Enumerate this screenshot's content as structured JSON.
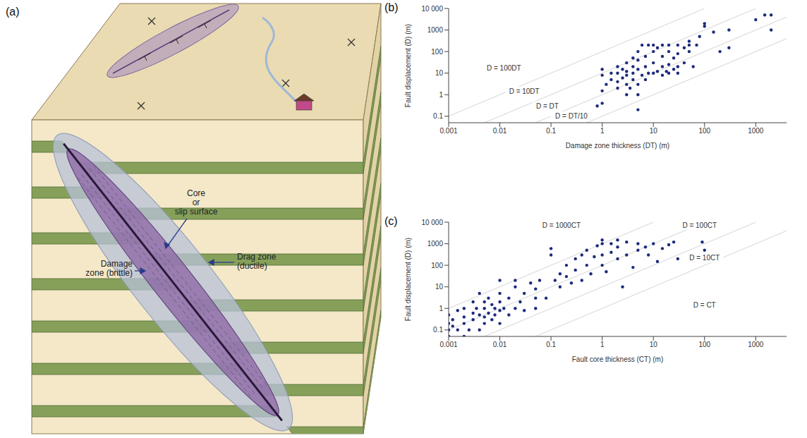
{
  "diagram": {
    "panel": "(a)",
    "labels": [
      [
        "Core",
        "or",
        "slip surface"
      ],
      [
        "Damage",
        "zone (brittle)"
      ],
      [
        "Drag zone",
        "(ductile)"
      ]
    ]
  },
  "chart_data": [
    {
      "type": "scatter",
      "panel": "(b)",
      "x_label": "Damage zone thickness (DT) (m)",
      "y_label": "Fault displacement (D) (m)",
      "log": true,
      "color": "#1c2a7c",
      "xlim": [
        0.001,
        4000
      ],
      "ylim": [
        0.05,
        10000
      ],
      "xticks": [
        0.001,
        0.01,
        0.1,
        1,
        10,
        100,
        1000
      ],
      "yticks": [
        0.1,
        1,
        10,
        100,
        1000,
        {
          "value": 10000,
          "label": "10 000"
        }
      ],
      "reference_lines": [
        {
          "label": "D = 100DT",
          "ratio": 100
        },
        {
          "label": "D = 10DT",
          "ratio": 10
        },
        {
          "label": "D = DT",
          "ratio": 1
        },
        {
          "label": "D = DT/10",
          "ratio": 0.1
        }
      ],
      "x": [
        0.8,
        1,
        1,
        1,
        1,
        1.2,
        1.5,
        1.5,
        2,
        2,
        2,
        2,
        2.5,
        2.5,
        3,
        3,
        3,
        3,
        3,
        3.5,
        4,
        4,
        4,
        4,
        5,
        5,
        5,
        5,
        5,
        5,
        6,
        6,
        7,
        7,
        7,
        8,
        8,
        10,
        10,
        10,
        10,
        12,
        12,
        15,
        15,
        15,
        15,
        18,
        20,
        20,
        20,
        20,
        25,
        25,
        30,
        30,
        30,
        30,
        40,
        40,
        50,
        50,
        50,
        60,
        70,
        80,
        100,
        100,
        150,
        200,
        300,
        300,
        1000,
        1500,
        2000,
        2000
      ],
      "values": [
        0.3,
        15,
        8,
        1.5,
        0.4,
        3,
        5,
        10,
        2,
        4,
        10,
        20,
        6,
        15,
        1,
        3,
        8,
        12,
        30,
        2,
        5,
        10,
        20,
        50,
        0.2,
        1,
        3,
        15,
        40,
        100,
        8,
        200,
        5,
        20,
        60,
        10,
        200,
        10,
        30,
        100,
        200,
        12,
        150,
        8,
        20,
        60,
        200,
        12,
        10,
        25,
        100,
        200,
        15,
        50,
        10,
        20,
        80,
        200,
        30,
        150,
        100,
        200,
        300,
        20,
        200,
        500,
        1500,
        2000,
        800,
        100,
        150,
        1000,
        3000,
        5000,
        1000,
        5000
      ]
    },
    {
      "type": "scatter",
      "panel": "(c)",
      "x_label": "Fault core thickness (CT) (m)",
      "y_label": "Fault displacement (D) (m)",
      "log": true,
      "color": "#1c2a7c",
      "xlim": [
        0.001,
        4000
      ],
      "ylim": [
        0.05,
        10000
      ],
      "xticks": [
        0.001,
        0.01,
        0.1,
        1,
        10,
        100,
        1000
      ],
      "yticks": [
        0.1,
        1,
        10,
        100,
        1000,
        {
          "value": 10000,
          "label": "10 000"
        }
      ],
      "reference_lines": [
        {
          "label": "D = 1000CT",
          "ratio": 1000
        },
        {
          "label": "D = 100CT",
          "ratio": 100
        },
        {
          "label": "D = 10CT",
          "ratio": 10
        },
        {
          "label": "D = CT",
          "ratio": 1
        }
      ],
      "x": [
        0.001,
        0.001,
        0.001,
        0.001,
        0.0012,
        0.0012,
        0.0015,
        0.0015,
        0.002,
        0.002,
        0.002,
        0.002,
        0.0025,
        0.003,
        0.003,
        0.003,
        0.0035,
        0.004,
        0.004,
        0.004,
        0.005,
        0.005,
        0.005,
        0.005,
        0.006,
        0.006,
        0.007,
        0.007,
        0.008,
        0.008,
        0.01,
        0.01,
        0.01,
        0.01,
        0.01,
        0.012,
        0.015,
        0.015,
        0.02,
        0.02,
        0.02,
        0.025,
        0.03,
        0.03,
        0.04,
        0.05,
        0.05,
        0.05,
        0.06,
        0.08,
        0.1,
        0.1,
        0.12,
        0.15,
        0.15,
        0.2,
        0.2,
        0.25,
        0.3,
        0.3,
        0.4,
        0.4,
        0.5,
        0.5,
        0.6,
        0.7,
        0.8,
        1,
        1,
        1,
        1,
        1.2,
        1.5,
        1.5,
        2,
        2,
        2,
        2.5,
        3,
        3,
        4,
        5,
        5,
        7,
        8,
        10,
        12,
        15,
        20,
        25,
        30,
        90,
        100
      ],
      "values": [
        0.1,
        0.2,
        0.5,
        0.05,
        0.15,
        0.3,
        0.1,
        0.8,
        0.05,
        0.2,
        0.4,
        1,
        0.1,
        0.3,
        0.6,
        2,
        1,
        0.1,
        0.5,
        5,
        0.2,
        0.4,
        1,
        2,
        0.6,
        3,
        0.3,
        1.5,
        0.5,
        1,
        0.2,
        0.8,
        2,
        5,
        20,
        1,
        3,
        0.5,
        1,
        10,
        20,
        2,
        0.8,
        5,
        15,
        1,
        3,
        8,
        20,
        3,
        300,
        600,
        20,
        10,
        40,
        30,
        100,
        15,
        60,
        200,
        20,
        300,
        100,
        500,
        40,
        250,
        800,
        100,
        300,
        1000,
        1500,
        50,
        400,
        1000,
        200,
        700,
        1500,
        10,
        300,
        1200,
        80,
        500,
        1000,
        700,
        300,
        1000,
        150,
        600,
        900,
        1200,
        200,
        1200,
        500
      ]
    }
  ]
}
